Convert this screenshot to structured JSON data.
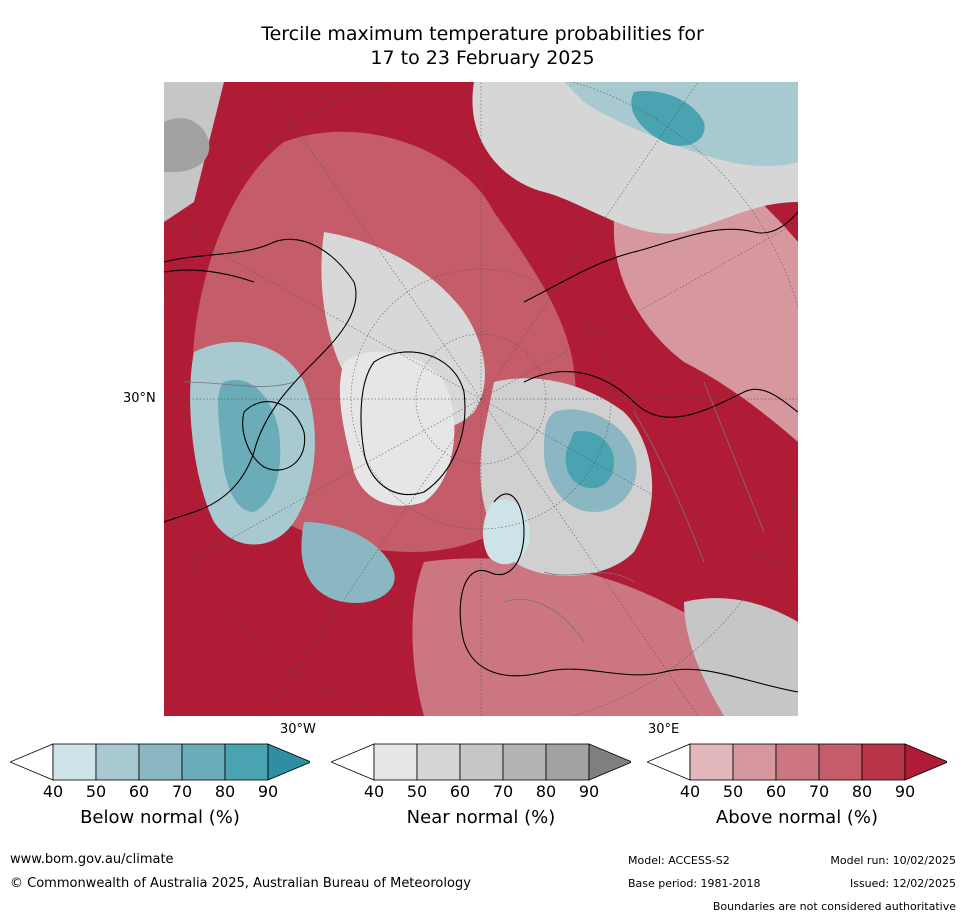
{
  "title_line1": "Tercile maximum temperature probabilities for",
  "title_line2": "17 to 23 February 2025",
  "map": {
    "lat_label": "30°N",
    "lon_label_w": "30°W",
    "lon_label_e": "30°E"
  },
  "legends": [
    {
      "label": "Below normal (%)",
      "ticks": [
        "40",
        "50",
        "60",
        "70",
        "80",
        "90"
      ],
      "colors": [
        "#cde3e8",
        "#a7c9cf",
        "#8ab7c2",
        "#6aacb8",
        "#4aa3b1",
        "#2e8ea3"
      ]
    },
    {
      "label": "Near normal (%)",
      "ticks": [
        "40",
        "50",
        "60",
        "70",
        "80",
        "90"
      ],
      "colors": [
        "#e6e6e6",
        "#d6d6d6",
        "#c6c6c6",
        "#b4b4b4",
        "#a2a2a2",
        "#7f7f7f"
      ]
    },
    {
      "label": "Above normal (%)",
      "ticks": [
        "40",
        "50",
        "60",
        "70",
        "80",
        "90"
      ],
      "colors": [
        "#e3b8bd",
        "#d7979f",
        "#cb7681",
        "#c45c69",
        "#b83447",
        "#b01c35"
      ]
    }
  ],
  "footer": {
    "url": "www.bom.gov.au/climate",
    "copyright": "© Commonwealth of Australia 2025, Australian Bureau of Meteorology",
    "model": "Model: ACCESS-S2",
    "model_run": "Model run: 10/02/2025",
    "base_period": "Base period: 1981-2018",
    "issued": "Issued: 12/02/2025",
    "boundaries": "Boundaries are not considered authoritative"
  },
  "colors": {
    "above_dark": "#b01c35",
    "above_mid": "#c45c69",
    "above_light": "#d7979f",
    "near_light": "#d8d8d8",
    "near_mid": "#b8b8b8",
    "below_light": "#a7c9cf",
    "below_dark": "#4aa3b1"
  }
}
